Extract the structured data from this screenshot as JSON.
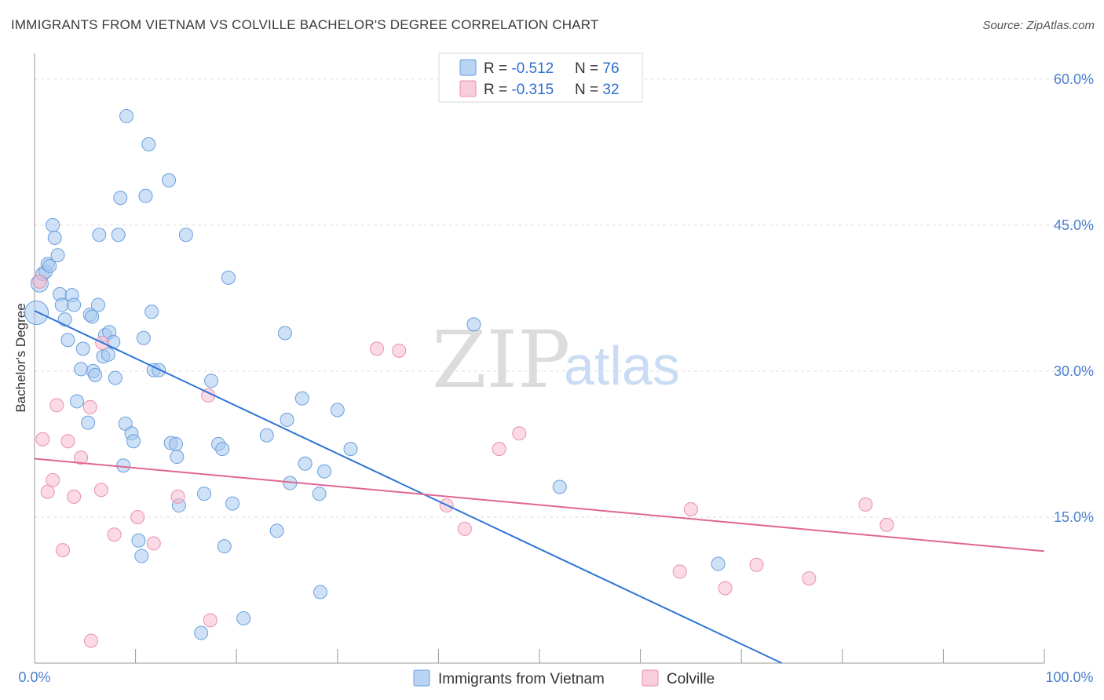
{
  "title": "IMMIGRANTS FROM VIETNAM VS COLVILLE BACHELOR'S DEGREE CORRELATION CHART",
  "source": "Source: ZipAtlas.com",
  "watermark": {
    "zip": "ZIP",
    "atlas": "atlas"
  },
  "colors": {
    "blue_fill": "#a8c8f0",
    "blue_stroke": "#6a9fdc",
    "blue_line": "#2f74d6",
    "pink_fill": "#f7bcd0",
    "pink_stroke": "#e890ae",
    "pink_line": "#e0678f",
    "tick_text": "#4a7fd0",
    "grid": "#dddddd"
  },
  "legend": {
    "rows": [
      {
        "r_label": "R = ",
        "r_value": "-0.512",
        "n_label": "N = ",
        "n_value": "76"
      },
      {
        "r_label": "R = ",
        "r_value": "-0.315",
        "n_label": "N = ",
        "n_value": "32"
      }
    ]
  },
  "chart_data": {
    "type": "scatter",
    "title": "IMMIGRANTS FROM VIETNAM VS COLVILLE BACHELOR'S DEGREE CORRELATION CHART",
    "xlabel": "",
    "ylabel": "Bachelor's Degree",
    "xlim": [
      0,
      100
    ],
    "ylim": [
      0,
      62
    ],
    "x_tick_labels": [
      "0.0%",
      "100.0%"
    ],
    "y_ticks": [
      15,
      30,
      45,
      60
    ],
    "y_tick_labels": [
      "15.0%",
      "30.0%",
      "45.0%",
      "60.0%"
    ],
    "legend_position": "top-center",
    "series": [
      {
        "name": "Immigrants from Vietnam",
        "trend": {
          "x0": 0,
          "y0": 36.2,
          "x1": 74,
          "y1": 0
        },
        "points": [
          [
            0.2,
            36.0
          ],
          [
            0.5,
            39.0
          ],
          [
            0.8,
            40.0
          ],
          [
            1.1,
            40.2
          ],
          [
            1.3,
            41.0
          ],
          [
            1.5,
            40.8
          ],
          [
            1.8,
            45.0
          ],
          [
            2.0,
            43.7
          ],
          [
            2.3,
            41.9
          ],
          [
            2.5,
            37.9
          ],
          [
            2.7,
            36.8
          ],
          [
            3.0,
            35.3
          ],
          [
            3.3,
            33.2
          ],
          [
            3.7,
            37.8
          ],
          [
            3.9,
            36.8
          ],
          [
            4.2,
            26.9
          ],
          [
            4.6,
            30.2
          ],
          [
            4.8,
            32.3
          ],
          [
            5.5,
            35.8
          ],
          [
            5.7,
            35.6
          ],
          [
            5.3,
            24.7
          ],
          [
            5.8,
            30.0
          ],
          [
            6.0,
            29.6
          ],
          [
            6.3,
            36.8
          ],
          [
            6.4,
            44.0
          ],
          [
            6.8,
            31.5
          ],
          [
            7.0,
            33.7
          ],
          [
            7.3,
            31.7
          ],
          [
            7.4,
            34.0
          ],
          [
            7.8,
            33.0
          ],
          [
            8.0,
            29.3
          ],
          [
            8.3,
            44.0
          ],
          [
            8.5,
            47.8
          ],
          [
            8.8,
            20.3
          ],
          [
            9.0,
            24.6
          ],
          [
            9.1,
            56.2
          ],
          [
            9.6,
            23.6
          ],
          [
            9.8,
            22.8
          ],
          [
            10.3,
            12.6
          ],
          [
            10.6,
            11.0
          ],
          [
            10.8,
            33.4
          ],
          [
            11.0,
            48.0
          ],
          [
            11.3,
            53.3
          ],
          [
            11.6,
            36.1
          ],
          [
            11.8,
            30.1
          ],
          [
            12.3,
            30.1
          ],
          [
            13.3,
            49.6
          ],
          [
            13.5,
            22.6
          ],
          [
            14.0,
            22.5
          ],
          [
            14.1,
            21.2
          ],
          [
            14.3,
            16.2
          ],
          [
            15.0,
            44.0
          ],
          [
            16.5,
            3.1
          ],
          [
            16.8,
            17.4
          ],
          [
            17.5,
            29.0
          ],
          [
            18.2,
            22.5
          ],
          [
            18.8,
            12.0
          ],
          [
            18.6,
            22.0
          ],
          [
            19.2,
            39.6
          ],
          [
            19.6,
            16.4
          ],
          [
            20.7,
            4.6
          ],
          [
            23.0,
            23.4
          ],
          [
            24.0,
            13.6
          ],
          [
            24.8,
            33.9
          ],
          [
            25.0,
            25.0
          ],
          [
            25.3,
            18.5
          ],
          [
            26.5,
            27.2
          ],
          [
            26.8,
            20.5
          ],
          [
            28.3,
            7.3
          ],
          [
            28.2,
            17.4
          ],
          [
            28.7,
            19.7
          ],
          [
            30.0,
            26.0
          ],
          [
            31.3,
            22.0
          ],
          [
            43.5,
            34.8
          ],
          [
            52.0,
            18.1
          ],
          [
            67.7,
            10.2
          ]
        ]
      },
      {
        "name": "Colville",
        "trend": {
          "x0": 0,
          "y0": 21.0,
          "x1": 100,
          "y1": 11.5
        },
        "points": [
          [
            0.5,
            39.2
          ],
          [
            0.8,
            23.0
          ],
          [
            1.3,
            17.6
          ],
          [
            1.8,
            18.8
          ],
          [
            2.2,
            26.5
          ],
          [
            2.8,
            11.6
          ],
          [
            3.3,
            22.8
          ],
          [
            3.9,
            17.1
          ],
          [
            4.6,
            21.1
          ],
          [
            5.5,
            26.3
          ],
          [
            5.6,
            2.3
          ],
          [
            6.6,
            17.8
          ],
          [
            6.7,
            32.9
          ],
          [
            7.9,
            13.2
          ],
          [
            10.2,
            15.0
          ],
          [
            11.8,
            12.3
          ],
          [
            14.2,
            17.1
          ],
          [
            17.2,
            27.5
          ],
          [
            17.4,
            4.4
          ],
          [
            33.9,
            32.3
          ],
          [
            36.1,
            32.1
          ],
          [
            40.8,
            16.2
          ],
          [
            42.6,
            13.8
          ],
          [
            46.0,
            22.0
          ],
          [
            48.0,
            23.6
          ],
          [
            63.9,
            9.4
          ],
          [
            65.0,
            15.8
          ],
          [
            68.4,
            7.7
          ],
          [
            71.5,
            10.1
          ],
          [
            76.7,
            8.7
          ],
          [
            82.3,
            16.3
          ],
          [
            84.4,
            14.2
          ]
        ]
      }
    ]
  }
}
